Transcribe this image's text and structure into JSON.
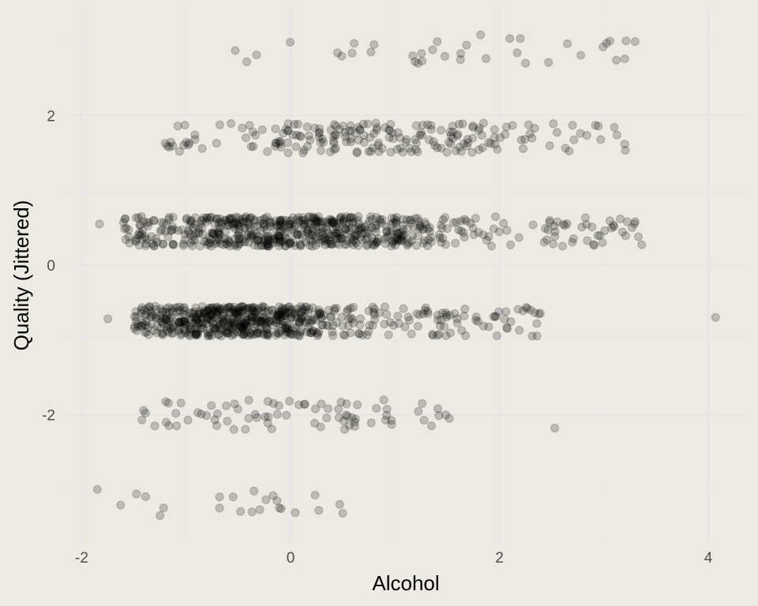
{
  "chart_data": {
    "type": "scatter",
    "xlabel": "Alcohol",
    "ylabel": "Quality (Jittered)",
    "xlim": [
      -2.05,
      4.3
    ],
    "ylim": [
      -3.6,
      3.3
    ],
    "x_ticks": [
      "-2",
      "0",
      "2",
      "4"
    ],
    "y_ticks": [
      "-2",
      "0",
      "2"
    ],
    "x_tick_values": [
      -2,
      0,
      2,
      4
    ],
    "y_tick_values": [
      -2,
      0,
      2
    ],
    "grid": true,
    "legend": "none",
    "point_color": "#000000",
    "point_opacity": 0.2,
    "background": "#ebebe3",
    "grid_color": "#e3e3e9",
    "bands": [
      {
        "center": -3.2,
        "half_height": 0.18,
        "count": 13,
        "x_range": [
          -1.9,
          0.55
        ]
      },
      {
        "center": -2.0,
        "half_height": 0.2,
        "count": 75,
        "x_range": [
          -1.45,
          1.5
        ]
      },
      {
        "center": -0.75,
        "half_height": 0.2,
        "count": 620,
        "x_range": [
          -1.5,
          2.4
        ],
        "x_mean": -0.55,
        "x_sd": 0.55
      },
      {
        "center": 0.45,
        "half_height": 0.2,
        "count": 640,
        "x_range": [
          -1.6,
          3.4
        ],
        "x_mean": 0.15,
        "x_sd": 0.8
      },
      {
        "center": 1.7,
        "half_height": 0.2,
        "count": 200,
        "x_range": [
          -1.2,
          3.3
        ],
        "x_mean": 0.9,
        "x_sd": 0.85
      },
      {
        "center": 2.85,
        "half_height": 0.18,
        "count": 20,
        "x_range": [
          -0.6,
          3.3
        ]
      }
    ],
    "points": [
      {
        "x": -1.85,
        "y": -3.0
      },
      {
        "x": -1.25,
        "y": -3.35
      },
      {
        "x": -0.68,
        "y": -3.1
      },
      {
        "x": -0.68,
        "y": -3.25
      },
      {
        "x": -0.55,
        "y": -3.1
      },
      {
        "x": -0.37,
        "y": -3.3
      },
      {
        "x": -0.13,
        "y": -3.15
      },
      {
        "x": 0.27,
        "y": -3.28
      },
      {
        "x": 0.47,
        "y": -3.2
      },
      {
        "x": 0.5,
        "y": -3.32
      },
      {
        "x": -1.3,
        "y": -2.15
      },
      {
        "x": 1.35,
        "y": -2.15
      },
      {
        "x": 2.53,
        "y": -2.18
      },
      {
        "x": 1.52,
        "y": -2.05
      },
      {
        "x": -1.75,
        "y": -0.72
      },
      {
        "x": 4.07,
        "y": -0.7
      },
      {
        "x": 2.3,
        "y": -0.6
      },
      {
        "x": -1.83,
        "y": 0.55
      },
      {
        "x": -1.6,
        "y": 0.57
      },
      {
        "x": 3.27,
        "y": 0.5
      },
      {
        "x": 3.33,
        "y": 0.38
      },
      {
        "x": 3.3,
        "y": 0.58
      },
      {
        "x": -1.2,
        "y": 1.63
      },
      {
        "x": 3.2,
        "y": 1.62
      },
      {
        "x": 2.97,
        "y": 1.68
      },
      {
        "x": 2.92,
        "y": 1.87
      },
      {
        "x": 2.7,
        "y": 1.87
      },
      {
        "x": -0.53,
        "y": 2.87
      },
      {
        "x": -0.42,
        "y": 2.72
      },
      {
        "x": 0.45,
        "y": 2.84
      },
      {
        "x": 0.77,
        "y": 2.85
      },
      {
        "x": 0.8,
        "y": 2.95
      },
      {
        "x": 1.17,
        "y": 2.8
      },
      {
        "x": 1.22,
        "y": 2.7
      },
      {
        "x": 1.36,
        "y": 2.88
      },
      {
        "x": 1.82,
        "y": 3.08
      },
      {
        "x": 2.1,
        "y": 3.03
      },
      {
        "x": 2.17,
        "y": 2.84
      },
      {
        "x": 2.2,
        "y": 3.03
      },
      {
        "x": 2.25,
        "y": 2.7
      },
      {
        "x": 2.47,
        "y": 2.71
      },
      {
        "x": 2.65,
        "y": 2.96
      },
      {
        "x": 3.2,
        "y": 2.76
      },
      {
        "x": 3.3,
        "y": 2.99
      }
    ]
  }
}
